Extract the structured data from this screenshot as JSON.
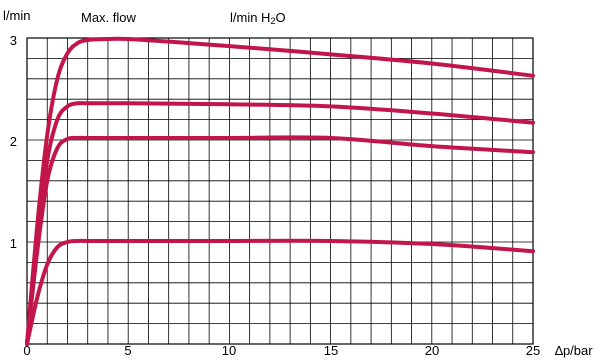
{
  "chart_data": {
    "type": "line",
    "ylabel": "l/min",
    "title": "Max. flow",
    "subtitle_text": "l/min H",
    "subtitle_sub": "2",
    "subtitle_tail": "O",
    "xlabel": "∆p/bar",
    "xlim": [
      0,
      25
    ],
    "ylim": [
      0,
      3
    ],
    "x_ticks": [
      "0",
      "5",
      "10",
      "15",
      "20",
      "25"
    ],
    "y_ticks": [
      "1",
      "2",
      "3"
    ],
    "grid": true,
    "colors": {
      "line": "#c2154a",
      "grid": "#000000"
    },
    "series": [
      {
        "x": [
          0,
          0.5,
          1,
          1.5,
          2,
          2.5,
          3,
          4,
          5,
          8,
          12,
          15,
          20,
          25
        ],
        "y": [
          0,
          1.15,
          2.05,
          2.6,
          2.85,
          2.95,
          2.98,
          2.99,
          2.99,
          2.95,
          2.89,
          2.84,
          2.75,
          2.63
        ]
      },
      {
        "x": [
          0,
          0.5,
          1,
          1.5,
          2,
          2.5,
          3,
          5,
          10,
          15,
          20,
          25
        ],
        "y": [
          0,
          1.0,
          1.8,
          2.2,
          2.33,
          2.36,
          2.36,
          2.36,
          2.35,
          2.33,
          2.26,
          2.17
        ]
      },
      {
        "x": [
          0,
          0.5,
          1,
          1.5,
          2,
          2.5,
          3,
          5,
          10,
          15,
          20,
          25
        ],
        "y": [
          0,
          0.9,
          1.6,
          1.92,
          2.01,
          2.02,
          2.02,
          2.02,
          2.02,
          2.02,
          1.94,
          1.88
        ]
      },
      {
        "x": [
          0,
          0.5,
          1,
          1.5,
          2,
          2.5,
          3,
          5,
          10,
          15,
          20,
          25
        ],
        "y": [
          0,
          0.45,
          0.78,
          0.95,
          1.0,
          1.01,
          1.01,
          1.01,
          1.01,
          1.01,
          0.98,
          0.91
        ]
      }
    ]
  }
}
